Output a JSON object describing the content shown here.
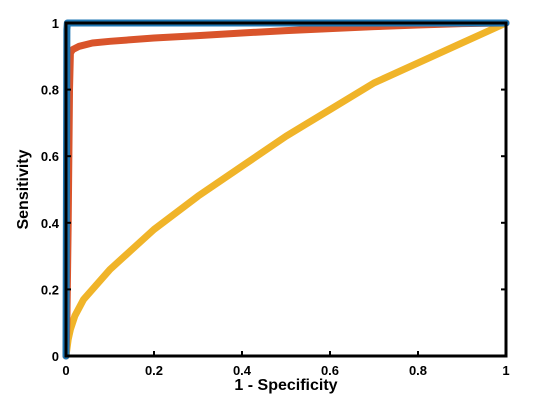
{
  "chart_data": {
    "type": "line",
    "title": "",
    "xlabel": "1 - Specificity",
    "ylabel": "Sensitivity",
    "xlim": [
      0,
      1
    ],
    "ylim": [
      0,
      1
    ],
    "xticks": [
      "0",
      "0.2",
      "0.4",
      "0.6",
      "0.8",
      "1"
    ],
    "yticks": [
      "0",
      "0.2",
      "0.4",
      "0.6",
      "0.8",
      "1"
    ],
    "grid": false,
    "legend": "none",
    "series": [
      {
        "color": "#F0B429",
        "x": [
          0,
          0.005,
          0.01,
          0.02,
          0.04,
          0.06,
          0.1,
          0.15,
          0.2,
          0.3,
          0.4,
          0.5,
          0.6,
          0.7,
          0.8,
          0.9,
          1.0
        ],
        "y": [
          0,
          0.05,
          0.08,
          0.12,
          0.17,
          0.2,
          0.26,
          0.32,
          0.38,
          0.48,
          0.57,
          0.66,
          0.74,
          0.82,
          0.88,
          0.94,
          1.0
        ]
      },
      {
        "color": "#D9542B",
        "x": [
          0,
          0.002,
          0.005,
          0.008,
          0.01,
          0.015,
          0.03,
          0.06,
          0.1,
          0.2,
          0.3,
          0.4,
          0.5,
          0.6,
          0.7,
          0.8,
          0.9,
          1.0
        ],
        "y": [
          0,
          0.1,
          0.4,
          0.8,
          0.91,
          0.92,
          0.93,
          0.94,
          0.945,
          0.955,
          0.962,
          0.97,
          0.977,
          0.983,
          0.989,
          0.994,
          0.998,
          1.0
        ]
      },
      {
        "color": "#1F77B4",
        "x": [
          0,
          0.002,
          0.003,
          0.01,
          0.02,
          1.0
        ],
        "y": [
          0,
          0.98,
          1.0,
          1.0,
          1.0,
          1.0
        ]
      }
    ]
  }
}
